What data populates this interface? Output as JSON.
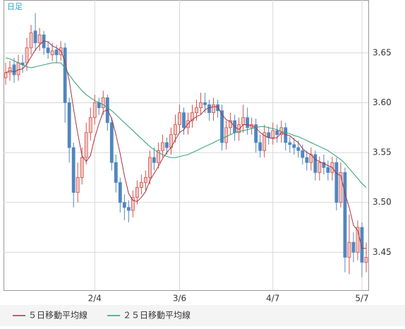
{
  "chart_data": {
    "type": "candlestick",
    "label": "日足",
    "categories": [
      null,
      null,
      null,
      null,
      null,
      null,
      null,
      null,
      null,
      null,
      null,
      null,
      null,
      null,
      null,
      null,
      null,
      null,
      null,
      null,
      null,
      "2/4",
      null,
      null,
      null,
      null,
      null,
      null,
      null,
      null,
      null,
      null,
      null,
      null,
      null,
      null,
      null,
      null,
      null,
      null,
      null,
      "3/6",
      null,
      null,
      null,
      null,
      null,
      null,
      null,
      null,
      null,
      null,
      null,
      null,
      null,
      null,
      null,
      null,
      null,
      null,
      null,
      null,
      null,
      "4/7",
      null,
      null,
      null,
      null,
      null,
      null,
      null,
      null,
      null,
      null,
      null,
      null,
      null,
      null,
      null,
      null,
      null,
      null,
      null,
      null,
      "5/7",
      null
    ],
    "open": [
      3.625,
      3.63,
      3.638,
      3.628,
      3.64,
      3.64,
      3.655,
      3.672,
      3.66,
      3.668,
      3.655,
      3.648,
      3.653,
      3.648,
      3.655,
      3.6,
      3.555,
      3.51,
      3.525,
      3.545,
      3.57,
      3.585,
      3.6,
      3.595,
      3.605,
      3.58,
      3.54,
      3.52,
      3.5,
      3.495,
      3.492,
      3.505,
      3.515,
      3.52,
      3.525,
      3.545,
      3.54,
      3.552,
      3.56,
      3.555,
      3.568,
      3.578,
      3.59,
      3.575,
      3.582,
      3.59,
      3.595,
      3.6,
      3.598,
      3.59,
      3.598,
      3.592,
      3.56,
      3.575,
      3.582,
      3.57,
      3.578,
      3.585,
      3.575,
      3.578,
      3.56,
      3.552,
      3.57,
      3.565,
      3.572,
      3.568,
      3.575,
      3.56,
      3.558,
      3.555,
      3.552,
      3.545,
      3.54,
      3.548,
      3.53,
      3.54,
      3.535,
      3.53,
      3.54,
      3.5,
      3.53,
      3.445,
      3.46,
      3.45,
      3.475,
      3.44
    ],
    "high": [
      3.64,
      3.642,
      3.645,
      3.648,
      3.648,
      3.665,
      3.678,
      3.69,
      3.675,
      3.672,
      3.662,
      3.66,
      3.658,
      3.662,
      3.66,
      3.605,
      3.56,
      3.54,
      3.555,
      3.58,
      3.595,
      3.608,
      3.605,
      3.612,
      3.608,
      3.585,
      3.548,
      3.525,
      3.508,
      3.502,
      3.512,
      3.522,
      3.528,
      3.532,
      3.552,
      3.555,
      3.56,
      3.568,
      3.565,
      3.575,
      3.588,
      3.598,
      3.595,
      3.59,
      3.598,
      3.603,
      3.61,
      3.61,
      3.603,
      3.605,
      3.603,
      3.598,
      3.582,
      3.59,
      3.588,
      3.585,
      3.598,
      3.595,
      3.585,
      3.584,
      3.568,
      3.578,
      3.576,
      3.58,
      3.578,
      3.582,
      3.58,
      3.566,
      3.565,
      3.562,
      3.558,
      3.552,
      3.555,
      3.552,
      3.546,
      3.548,
      3.542,
      3.546,
      3.545,
      3.54,
      3.535,
      3.488,
      3.47,
      3.482,
      3.48,
      3.46
    ],
    "low": [
      3.618,
      3.622,
      3.62,
      3.622,
      3.63,
      3.632,
      3.648,
      3.652,
      3.652,
      3.648,
      3.644,
      3.642,
      3.64,
      3.642,
      3.58,
      3.54,
      3.495,
      3.5,
      3.518,
      3.538,
      3.562,
      3.578,
      3.588,
      3.588,
      3.572,
      3.532,
      3.51,
      3.49,
      3.482,
      3.48,
      3.485,
      3.498,
      3.508,
      3.512,
      3.518,
      3.532,
      3.534,
      3.545,
      3.548,
      3.548,
      3.56,
      3.57,
      3.568,
      3.568,
      3.575,
      3.582,
      3.588,
      3.59,
      3.582,
      3.582,
      3.585,
      3.552,
      3.553,
      3.568,
      3.562,
      3.562,
      3.57,
      3.568,
      3.568,
      3.55,
      3.545,
      3.545,
      3.558,
      3.558,
      3.56,
      3.56,
      3.552,
      3.55,
      3.548,
      3.545,
      3.538,
      3.532,
      3.532,
      3.522,
      3.522,
      3.528,
      3.522,
      3.522,
      3.492,
      3.495,
      3.43,
      3.428,
      3.44,
      3.442,
      3.425,
      3.43
    ],
    "close": [
      3.63,
      3.635,
      3.628,
      3.64,
      3.638,
      3.655,
      3.67,
      3.66,
      3.668,
      3.655,
      3.65,
      3.652,
      3.648,
      3.655,
      3.6,
      3.555,
      3.51,
      3.525,
      3.545,
      3.57,
      3.585,
      3.6,
      3.595,
      3.605,
      3.58,
      3.54,
      3.52,
      3.5,
      3.495,
      3.492,
      3.505,
      3.515,
      3.52,
      3.525,
      3.545,
      3.54,
      3.552,
      3.56,
      3.555,
      3.568,
      3.578,
      3.59,
      3.575,
      3.582,
      3.59,
      3.595,
      3.6,
      3.598,
      3.59,
      3.598,
      3.592,
      3.56,
      3.575,
      3.582,
      3.57,
      3.578,
      3.585,
      3.575,
      3.578,
      3.56,
      3.552,
      3.57,
      3.565,
      3.572,
      3.568,
      3.575,
      3.56,
      3.558,
      3.555,
      3.552,
      3.545,
      3.54,
      3.548,
      3.53,
      3.54,
      3.535,
      3.53,
      3.54,
      3.5,
      3.53,
      3.445,
      3.46,
      3.45,
      3.475,
      3.44,
      3.445
    ],
    "up_color": "#d2504a",
    "down_color": "#4f86c0",
    "series": [
      {
        "name": "５日移動平均線",
        "color": "#a8323e",
        "values": [
          3.63,
          3.632,
          3.631,
          3.633,
          3.634,
          3.639,
          3.646,
          3.653,
          3.658,
          3.662,
          3.661,
          3.657,
          3.655,
          3.652,
          3.641,
          3.622,
          3.594,
          3.569,
          3.547,
          3.541,
          3.547,
          3.565,
          3.579,
          3.591,
          3.593,
          3.584,
          3.568,
          3.549,
          3.527,
          3.509,
          3.502,
          3.501,
          3.505,
          3.511,
          3.522,
          3.529,
          3.536,
          3.544,
          3.55,
          3.555,
          3.563,
          3.57,
          3.573,
          3.579,
          3.583,
          3.586,
          3.588,
          3.593,
          3.595,
          3.596,
          3.596,
          3.588,
          3.583,
          3.581,
          3.576,
          3.573,
          3.578,
          3.578,
          3.577,
          3.575,
          3.57,
          3.567,
          3.565,
          3.564,
          3.565,
          3.57,
          3.568,
          3.567,
          3.563,
          3.56,
          3.554,
          3.55,
          3.548,
          3.543,
          3.541,
          3.539,
          3.537,
          3.535,
          3.529,
          3.527,
          3.509,
          3.495,
          3.477,
          3.472,
          3.454,
          3.454
        ]
      },
      {
        "name": "２５日移動平均線",
        "color": "#2f9e72",
        "values": [
          3.645,
          3.644,
          3.642,
          3.64,
          3.638,
          3.636,
          3.635,
          3.636,
          3.637,
          3.638,
          3.639,
          3.64,
          3.64,
          3.64,
          3.635,
          3.628,
          3.622,
          3.617,
          3.612,
          3.608,
          3.605,
          3.602,
          3.6,
          3.598,
          3.595,
          3.592,
          3.588,
          3.584,
          3.58,
          3.576,
          3.572,
          3.568,
          3.564,
          3.56,
          3.556,
          3.553,
          3.55,
          3.548,
          3.546,
          3.545,
          3.545,
          3.546,
          3.547,
          3.548,
          3.55,
          3.552,
          3.554,
          3.556,
          3.558,
          3.56,
          3.562,
          3.564,
          3.566,
          3.568,
          3.57,
          3.571,
          3.572,
          3.573,
          3.574,
          3.575,
          3.576,
          3.576,
          3.575,
          3.574,
          3.573,
          3.571,
          3.57,
          3.569,
          3.567,
          3.566,
          3.564,
          3.562,
          3.56,
          3.558,
          3.556,
          3.554,
          3.552,
          3.549,
          3.546,
          3.543,
          3.539,
          3.534,
          3.529,
          3.524,
          3.519,
          3.515
        ]
      }
    ],
    "ylim": [
      3.412,
      3.703
    ],
    "yticks": [
      3.45,
      {
        "value": 3.5,
        "label": "3.50"
      },
      3.55,
      {
        "value": 3.6,
        "label": "3.60"
      },
      3.65
    ],
    "grid": true
  }
}
